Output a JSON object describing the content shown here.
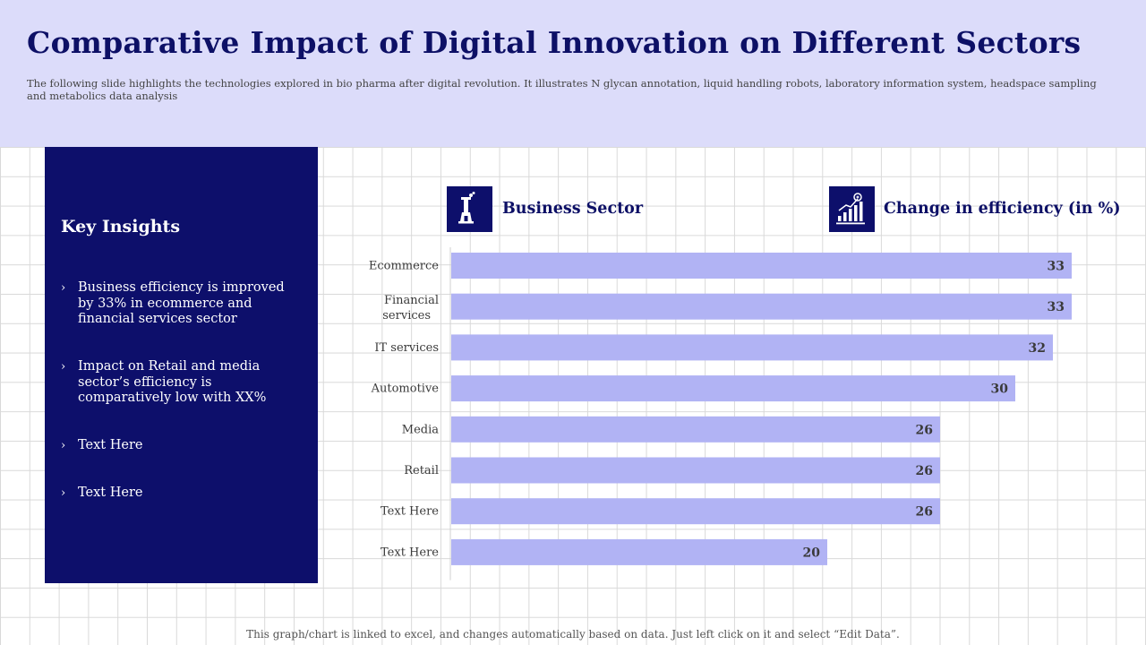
{
  "header": {
    "title": "Comparative Impact of Digital Innovation on Different Sectors",
    "subtitle": "The following slide highlights the technologies explored in bio pharma after digital revolution. It illustrates N glycan annotation, liquid handling robots, laboratory information system, headspace sampling and metabolics data analysis"
  },
  "insights": {
    "heading": "Key Insights",
    "bullet_glyph": "›",
    "items": [
      "Business efficiency is improved by 33%  in ecommerce and financial services sector",
      "Impact on Retail and media sector’s efficiency is comparatively low with XX%",
      "Text Here",
      "Text Here"
    ]
  },
  "columns": {
    "left_label": "Business Sector",
    "left_icon": "factory-icon",
    "right_label": "Change in efficiency (in %)",
    "right_icon": "growth-chart-icon"
  },
  "colors": {
    "navy": "#0d0f6b",
    "bar": "#b1b3f4",
    "header_bg": "#dcdcfa"
  },
  "chart_data": {
    "type": "bar",
    "orientation": "horizontal",
    "categories": [
      "Ecommerce",
      "Financial services",
      "IT services",
      "Automotive",
      "Media",
      "Retail",
      "Text Here",
      "Text Here"
    ],
    "values": [
      33,
      33,
      32,
      30,
      26,
      26,
      26,
      20
    ],
    "xlim": [
      0,
      33
    ],
    "data_labels": true,
    "grid": false
  },
  "footer": {
    "note": "This graph/chart is linked to excel, and changes automatically based on data. Just left click on it and select “Edit Data”."
  }
}
